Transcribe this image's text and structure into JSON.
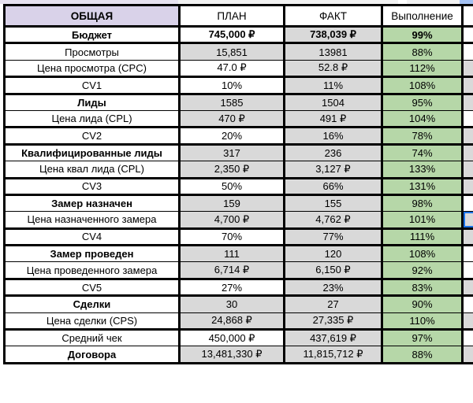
{
  "colors": {
    "header_accent": "#d9d2e9",
    "cell_gray": "#d9d9d9",
    "completion_green": "#b6d7a8",
    "grid_border": "#000000",
    "selection_blue": "#1a73e8",
    "sliver_blue": "#a4c2f4"
  },
  "sheet": {
    "columns": {
      "metric": "ОБЩАЯ",
      "plan": "ПЛАН",
      "fact": "ФАКТ",
      "completion": "Выполнение",
      "extra": ""
    },
    "rows": [
      {
        "label": "Бюджет",
        "plan": "745,000 ₽",
        "fact": "738,039 ₽",
        "completion": "99%",
        "label_bold": true,
        "values_bold": true,
        "plan_bg": "white",
        "extra_bg": "white",
        "border": "thick",
        "selected": false
      },
      {
        "label": "Просмотры",
        "plan": "15,851",
        "fact": "13981",
        "completion": "88%",
        "label_bold": false,
        "values_bold": false,
        "plan_bg": "gray",
        "extra_bg": "white",
        "border": "thin",
        "selected": false
      },
      {
        "label": "Цена просмотра (CPC)",
        "plan": "47.0 ₽",
        "fact": "52.8 ₽",
        "completion": "112%",
        "label_bold": false,
        "values_bold": false,
        "plan_bg": "white",
        "extra_bg": "gray",
        "border": "thick",
        "selected": false
      },
      {
        "label": "CV1",
        "plan": "10%",
        "fact": "11%",
        "completion": "108%",
        "label_bold": false,
        "values_bold": false,
        "plan_bg": "white",
        "extra_bg": "gray",
        "border": "thick",
        "selected": false
      },
      {
        "label": "Лиды",
        "plan": "1585",
        "fact": "1504",
        "completion": "95%",
        "label_bold": true,
        "values_bold": false,
        "plan_bg": "gray",
        "extra_bg": "gray",
        "border": "thin",
        "selected": false
      },
      {
        "label": "Цена лида (CPL)",
        "plan": "470 ₽",
        "fact": "491 ₽",
        "completion": "104%",
        "label_bold": false,
        "values_bold": false,
        "plan_bg": "gray",
        "extra_bg": "white",
        "border": "thick",
        "selected": false
      },
      {
        "label": "CV2",
        "plan": "20%",
        "fact": "16%",
        "completion": "78%",
        "label_bold": false,
        "values_bold": false,
        "plan_bg": "white",
        "extra_bg": "gray",
        "border": "thick",
        "selected": false
      },
      {
        "label": "Квалифицированные лиды",
        "plan": "317",
        "fact": "236",
        "completion": "74%",
        "label_bold": true,
        "values_bold": false,
        "plan_bg": "gray",
        "extra_bg": "gray",
        "border": "thin",
        "selected": false
      },
      {
        "label": "Цена квал лида (CPL)",
        "plan": "2,350 ₽",
        "fact": "3,127 ₽",
        "completion": "133%",
        "label_bold": false,
        "values_bold": false,
        "plan_bg": "gray",
        "extra_bg": "gray",
        "border": "thick",
        "selected": false
      },
      {
        "label": "CV3",
        "plan": "50%",
        "fact": "66%",
        "completion": "131%",
        "label_bold": false,
        "values_bold": false,
        "plan_bg": "white",
        "extra_bg": "gray",
        "border": "thick",
        "selected": false
      },
      {
        "label": "Замер назначен",
        "plan": "159",
        "fact": "155",
        "completion": "98%",
        "label_bold": true,
        "values_bold": false,
        "plan_bg": "gray",
        "extra_bg": "white",
        "border": "thin",
        "selected": false
      },
      {
        "label": "Цена назначенного замера",
        "plan": "4,700 ₽",
        "fact": "4,762 ₽",
        "completion": "101%",
        "label_bold": false,
        "values_bold": false,
        "plan_bg": "gray",
        "extra_bg": "gray",
        "border": "thick",
        "selected": true
      },
      {
        "label": "CV4",
        "plan": "70%",
        "fact": "77%",
        "completion": "111%",
        "label_bold": false,
        "values_bold": false,
        "plan_bg": "white",
        "extra_bg": "gray",
        "border": "thick",
        "selected": false
      },
      {
        "label": "Замер проведен",
        "plan": "111",
        "fact": "120",
        "completion": "108%",
        "label_bold": true,
        "values_bold": false,
        "plan_bg": "gray",
        "extra_bg": "white",
        "border": "thin",
        "selected": false
      },
      {
        "label": "Цена проведенного замера",
        "plan": "6,714 ₽",
        "fact": "6,150 ₽",
        "completion": "92%",
        "label_bold": false,
        "values_bold": false,
        "plan_bg": "gray",
        "extra_bg": "white",
        "border": "thick",
        "selected": false
      },
      {
        "label": "CV5",
        "plan": "27%",
        "fact": "23%",
        "completion": "83%",
        "label_bold": false,
        "values_bold": false,
        "plan_bg": "white",
        "extra_bg": "gray",
        "border": "thick",
        "selected": false
      },
      {
        "label": "Сделки",
        "plan": "30",
        "fact": "27",
        "completion": "90%",
        "label_bold": true,
        "values_bold": false,
        "plan_bg": "gray",
        "extra_bg": "white",
        "border": "thin",
        "selected": false
      },
      {
        "label": "Цена сделки (CPS)",
        "plan": "24,868 ₽",
        "fact": "27,335 ₽",
        "completion": "110%",
        "label_bold": false,
        "values_bold": false,
        "plan_bg": "gray",
        "extra_bg": "gray",
        "border": "thick",
        "selected": false
      },
      {
        "label": "Средний чек",
        "plan": "450,000 ₽",
        "fact": "437,619 ₽",
        "completion": "97%",
        "label_bold": false,
        "values_bold": false,
        "plan_bg": "white",
        "extra_bg": "white",
        "border": "thin",
        "selected": false
      },
      {
        "label": "Договора",
        "plan": "13,481,330 ₽",
        "fact": "11,815,712 ₽",
        "completion": "88%",
        "label_bold": true,
        "values_bold": false,
        "plan_bg": "gray",
        "extra_bg": "gray",
        "border": "thick",
        "selected": false
      }
    ]
  }
}
